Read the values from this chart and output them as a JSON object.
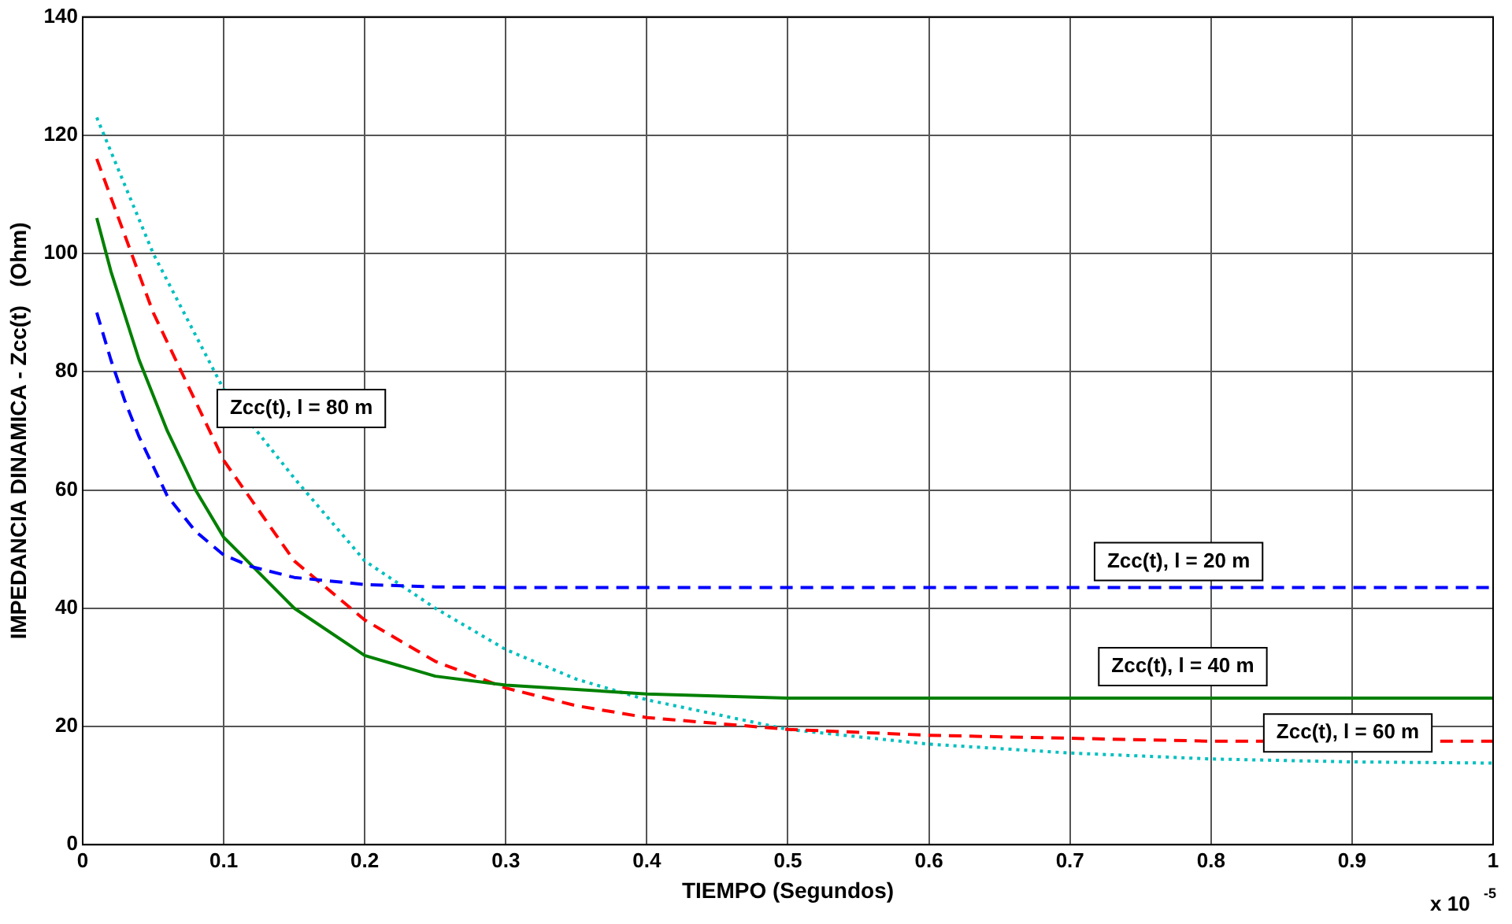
{
  "chart_data": {
    "type": "line",
    "xlabel": "TIEMPO (Segundos)",
    "ylabel": "IMPEDANCIA DINAMICA - Zcc(t)   (Ohm)",
    "xlim": [
      0,
      1
    ],
    "xticks": [
      0,
      0.1,
      0.2,
      0.3,
      0.4,
      0.5,
      0.6,
      0.7,
      0.8,
      0.9,
      1
    ],
    "ylim": [
      0,
      140
    ],
    "yticks": [
      0,
      20,
      40,
      60,
      80,
      100,
      120,
      140
    ],
    "grid": true,
    "legend": false,
    "marker": "none",
    "series": [
      {
        "color": "#0000ff",
        "line_style": "dashed",
        "x": [
          0.01,
          0.02,
          0.03,
          0.04,
          0.05,
          0.06,
          0.08,
          0.1,
          0.12,
          0.15,
          0.2,
          0.25,
          0.3,
          1
        ],
        "values": [
          90,
          82,
          75,
          69,
          64,
          59,
          53,
          49,
          47,
          45.2,
          44,
          43.6,
          43.5,
          43.5
        ]
      },
      {
        "color": "#008000",
        "line_style": "solid",
        "x": [
          0.01,
          0.02,
          0.04,
          0.06,
          0.08,
          0.1,
          0.15,
          0.2,
          0.25,
          0.3,
          0.4,
          0.5,
          1
        ],
        "values": [
          106,
          97,
          82,
          70,
          60,
          52,
          40,
          32,
          28.5,
          27,
          25.5,
          24.8,
          24.8
        ]
      },
      {
        "color": "#ff0000",
        "line_style": "dashed",
        "x": [
          0.01,
          0.05,
          0.1,
          0.15,
          0.2,
          0.25,
          0.3,
          0.35,
          0.4,
          0.5,
          0.6,
          0.7,
          0.8,
          1
        ],
        "values": [
          116,
          90,
          65,
          48,
          38,
          31,
          26.5,
          23.5,
          21.5,
          19.5,
          18.5,
          18,
          17.5,
          17.5
        ]
      },
      {
        "color": "#00bfbf",
        "line_style": "dotted",
        "x": [
          0.01,
          0.05,
          0.1,
          0.15,
          0.2,
          0.25,
          0.3,
          0.35,
          0.4,
          0.5,
          0.6,
          0.7,
          0.8,
          0.9,
          1
        ],
        "values": [
          123,
          100,
          77,
          62,
          48,
          40,
          33,
          28,
          24.5,
          19.5,
          17,
          15.5,
          14.5,
          14,
          13.8
        ]
      }
    ],
    "annotations": [
      "Zcc(t), l = 80 m",
      "Zcc(t), l = 20 m",
      "Zcc(t), l = 40 m",
      "Zcc(t), l = 60 m",
      "x 10$^{-5}$"
    ]
  }
}
